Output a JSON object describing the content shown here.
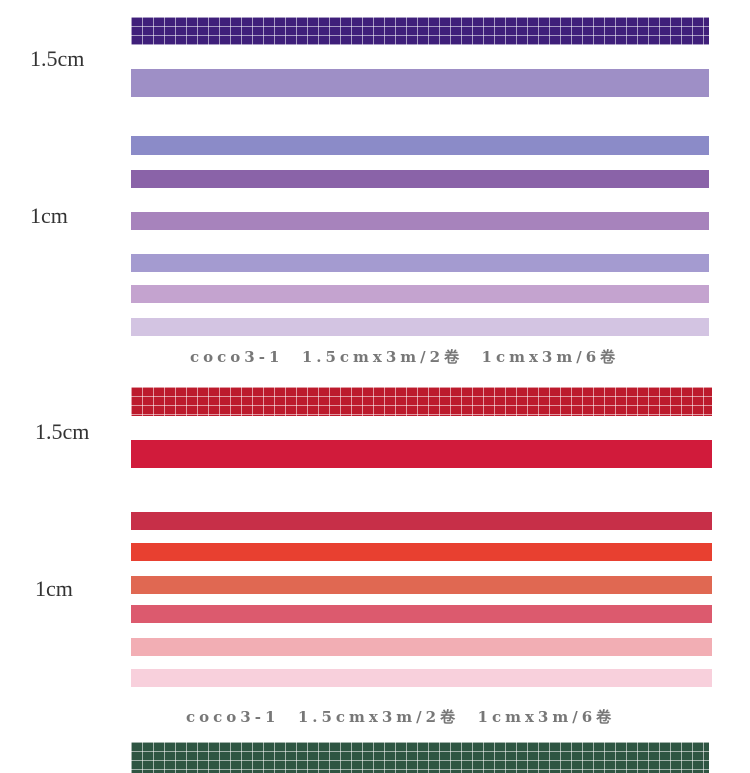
{
  "groups": [
    {
      "labels": [
        "1.5cm",
        "1cm"
      ],
      "caption": "coco3-1  1.5cmx3m/2卷  1cmx3m/6卷",
      "colors": [
        "#3f1f7a",
        "#9e8fc6",
        "#8b8bc8",
        "#8a63a8",
        "#a783bc",
        "#a49bd0",
        "#c4a3cf",
        "#d3c4e2"
      ]
    },
    {
      "labels": [
        "1.5cm",
        "1cm"
      ],
      "caption": "coco3-1  1.5cmx3m/2卷  1cmx3m/6卷",
      "colors": [
        "#bc1a2c",
        "#d11b3b",
        "#c72f48",
        "#e84030",
        "#e06852",
        "#dc5a6e",
        "#f2aeb4",
        "#f8d0dc"
      ]
    },
    {
      "colors": [
        "#2e5542"
      ]
    }
  ]
}
